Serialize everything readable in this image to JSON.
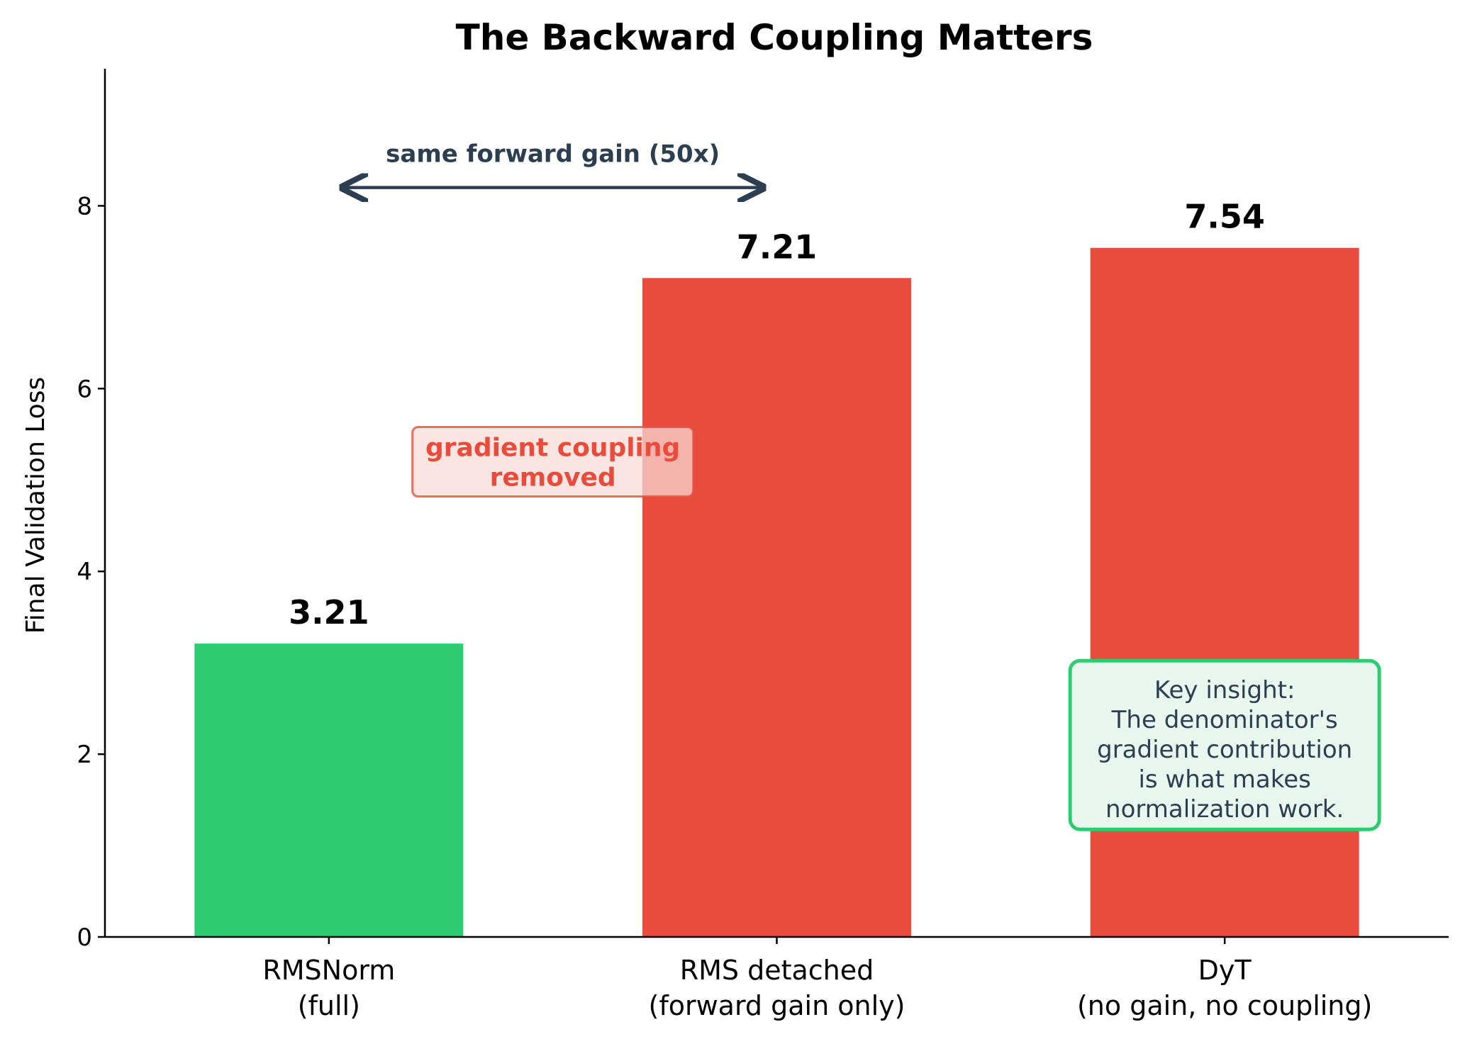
{
  "colors": {
    "green": "#2ecc71",
    "red": "#e74c3c",
    "navy": "#2c3e50",
    "note_fill": "#fadbd8",
    "insight_fill": "#e8f8ee"
  },
  "chart_data": {
    "type": "bar",
    "title": "The Backward Coupling Matters",
    "xlabel": "",
    "ylabel": "Final Validation Loss",
    "ylim": [
      0,
      9.5
    ],
    "yticks": [
      0,
      2,
      4,
      6,
      8
    ],
    "grid": false,
    "categories": [
      [
        "RMSNorm",
        "(full)"
      ],
      [
        "RMS detached",
        "(forward gain only)"
      ],
      [
        "DyT",
        "(no gain, no coupling)"
      ]
    ],
    "values": [
      3.21,
      7.21,
      7.54
    ],
    "value_labels": [
      "3.21",
      "7.21",
      "7.54"
    ],
    "bar_colors": [
      "#2ecc71",
      "#e74c3c",
      "#e74c3c"
    ],
    "annotations": {
      "arrow_label": "same forward gain (50x)",
      "arrow_span": [
        0.03,
        0.97
      ],
      "arrow_y": 8.2,
      "red_note": [
        "gradient coupling",
        "removed"
      ],
      "red_note_center": [
        0.5,
        5.2
      ],
      "insight": [
        "Key insight:",
        "The denominator's",
        "gradient contribution",
        "is what makes",
        "normalization work."
      ],
      "insight_center": [
        2.0,
        2.1
      ]
    }
  }
}
